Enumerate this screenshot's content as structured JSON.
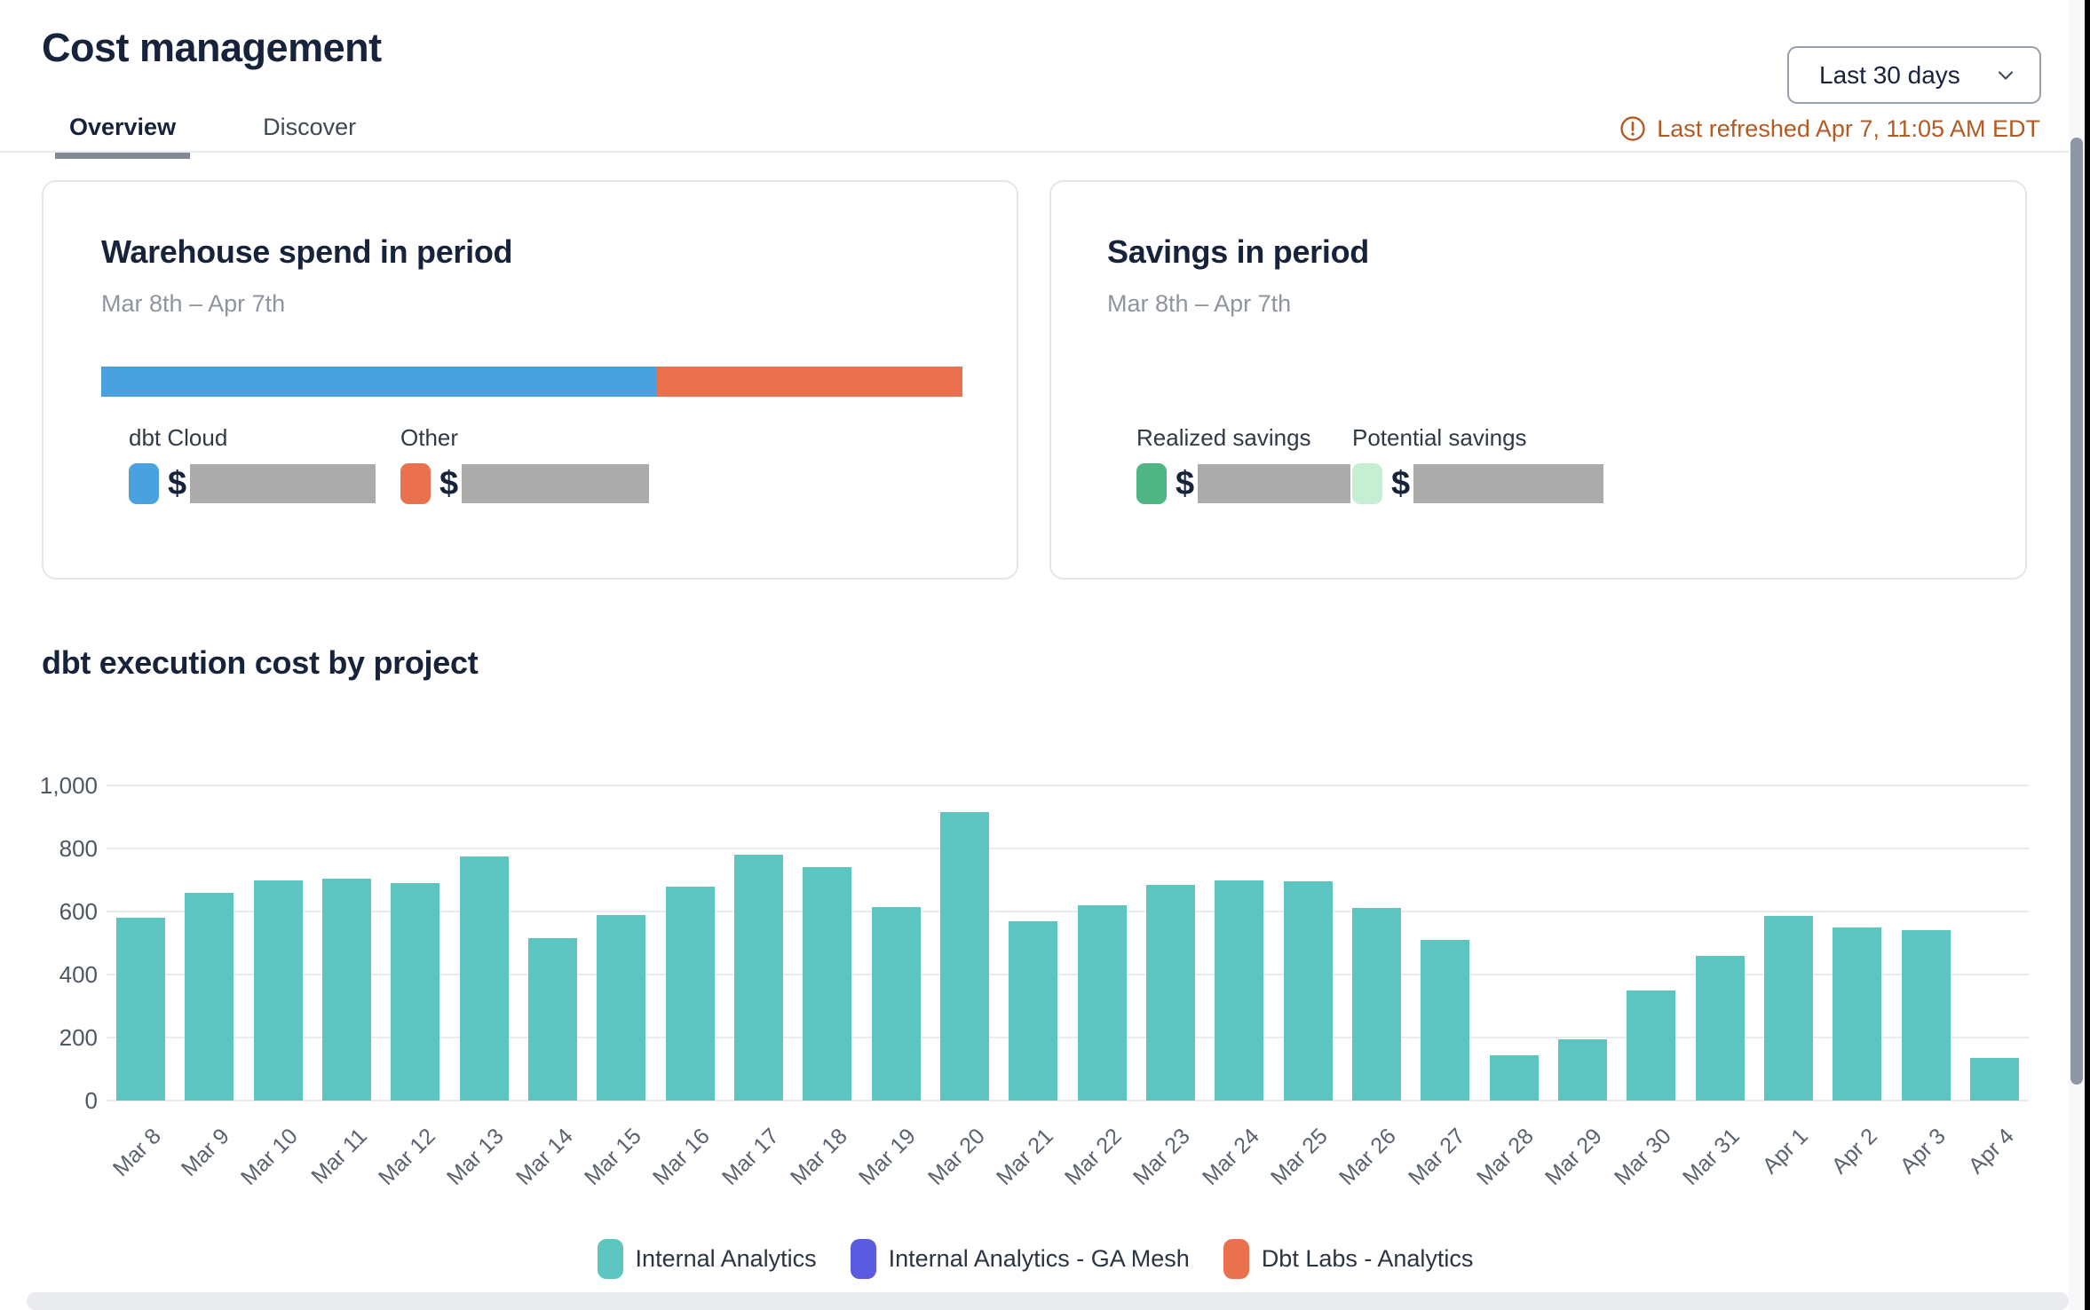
{
  "header": {
    "title": "Cost management",
    "tabs": [
      {
        "label": "Overview",
        "active": true
      },
      {
        "label": "Discover",
        "active": false
      }
    ],
    "period_selector": {
      "value": "Last 30 days",
      "icon": "chevron-down"
    },
    "last_refreshed": "Last refreshed Apr 7, 11:05 AM EDT",
    "last_refreshed_icon": "alert-circle",
    "last_refreshed_color": "#b15a24"
  },
  "cards": {
    "warehouse_spend": {
      "title": "Warehouse spend in period",
      "date_range": "Mar 8th – Apr 7th",
      "split_bar": [
        {
          "label": "dbt Cloud",
          "color": "#4aa1df",
          "pct": 64.5
        },
        {
          "label": "Other",
          "color": "#e9714e",
          "pct": 35.5
        }
      ],
      "items": [
        {
          "label": "dbt Cloud",
          "swatch_color": "#4aa1df",
          "currency": "$",
          "value_redacted": true
        },
        {
          "label": "Other",
          "swatch_color": "#e9714e",
          "currency": "$",
          "value_redacted": true
        }
      ]
    },
    "savings": {
      "title": "Savings in period",
      "date_range": "Mar 8th – Apr 7th",
      "items": [
        {
          "label": "Realized savings",
          "swatch_color": "#4fb583",
          "currency": "$",
          "value_redacted": true
        },
        {
          "label": "Potential savings",
          "swatch_color": "#c5eed3",
          "currency": "$",
          "value_redacted": true
        }
      ]
    }
  },
  "chart_section": {
    "title": "dbt execution cost by project"
  },
  "chart_data": {
    "type": "bar",
    "title": "dbt execution cost by project",
    "categories": [
      "Mar 8",
      "Mar 9",
      "Mar 10",
      "Mar 11",
      "Mar 12",
      "Mar 13",
      "Mar 14",
      "Mar 15",
      "Mar 16",
      "Mar 17",
      "Mar 18",
      "Mar 19",
      "Mar 20",
      "Mar 21",
      "Mar 22",
      "Mar 23",
      "Mar 24",
      "Mar 25",
      "Mar 26",
      "Mar 27",
      "Mar 28",
      "Mar 29",
      "Mar 30",
      "Mar 31",
      "Apr 1",
      "Apr 2",
      "Apr 3",
      "Apr 4"
    ],
    "series": [
      {
        "name": "Internal Analytics",
        "color": "#5cc5c0",
        "values": [
          580,
          660,
          700,
          705,
          690,
          775,
          515,
          590,
          680,
          780,
          740,
          615,
          915,
          570,
          620,
          685,
          700,
          695,
          610,
          510,
          145,
          195,
          350,
          460,
          585,
          550,
          540,
          135
        ]
      }
    ],
    "legend": [
      {
        "label": "Internal Analytics",
        "color": "#5cc5c0"
      },
      {
        "label": "Internal Analytics - GA Mesh",
        "color": "#5a5be0"
      },
      {
        "label": "Dbt Labs - Analytics",
        "color": "#e9714e"
      }
    ],
    "xlabel": "",
    "ylabel": "",
    "ylim": [
      0,
      1000
    ],
    "yticks": [
      0,
      200,
      400,
      600,
      800,
      1000
    ],
    "ytick_labels": [
      "0",
      "200",
      "400",
      "600",
      "800",
      "1,000"
    ],
    "grid": true,
    "legend_position": "bottom"
  }
}
